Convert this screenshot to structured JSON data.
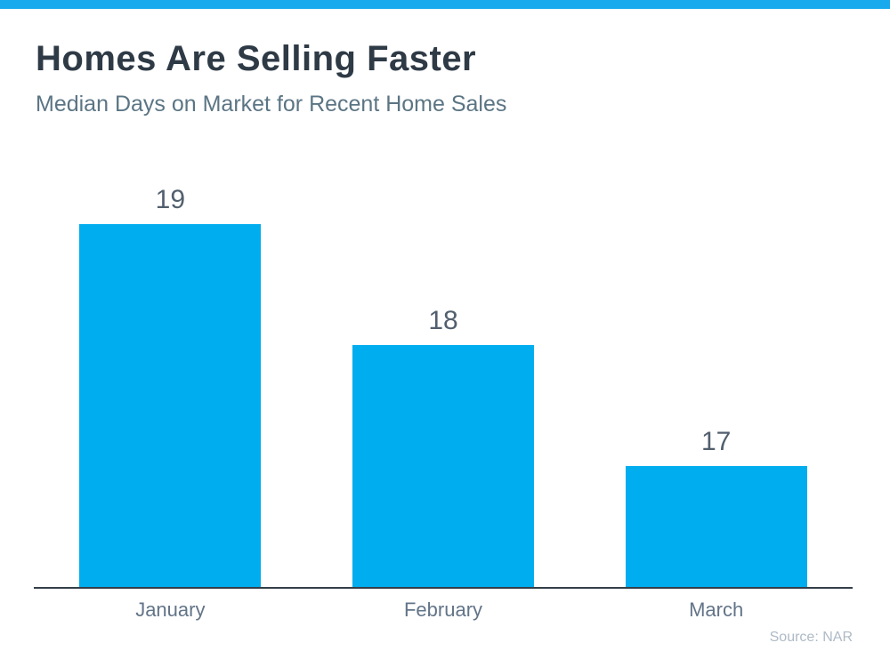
{
  "page": {
    "title": "Homes Are Selling Faster",
    "subtitle": "Median Days on Market for Recent Home Sales",
    "source": "Source: NAR"
  },
  "colors": {
    "top_strip": "#18AAEC",
    "accent_bar": "#00ADEE",
    "title_text": "#2E3A45",
    "subtitle_text": "#5B7584",
    "value_label_text": "#525F6E",
    "category_label_text": "#627488",
    "source_text": "#AEBAC6",
    "axis_line": "#333E48"
  },
  "chart_data": {
    "type": "bar",
    "title": "Homes Are Selling Faster",
    "subtitle": "Median Days on Market for Recent Home Sales",
    "categories": [
      "January",
      "February",
      "March"
    ],
    "values": [
      19,
      18,
      17
    ],
    "value_labels": [
      "19",
      "18",
      "17"
    ],
    "xlabel": "",
    "ylabel": "",
    "ylim": [
      16,
      19.75
    ],
    "y_baseline": 16,
    "grid": false,
    "legend": false,
    "bar_color": "#00ADEE",
    "annotations": [
      "Source: NAR"
    ]
  }
}
